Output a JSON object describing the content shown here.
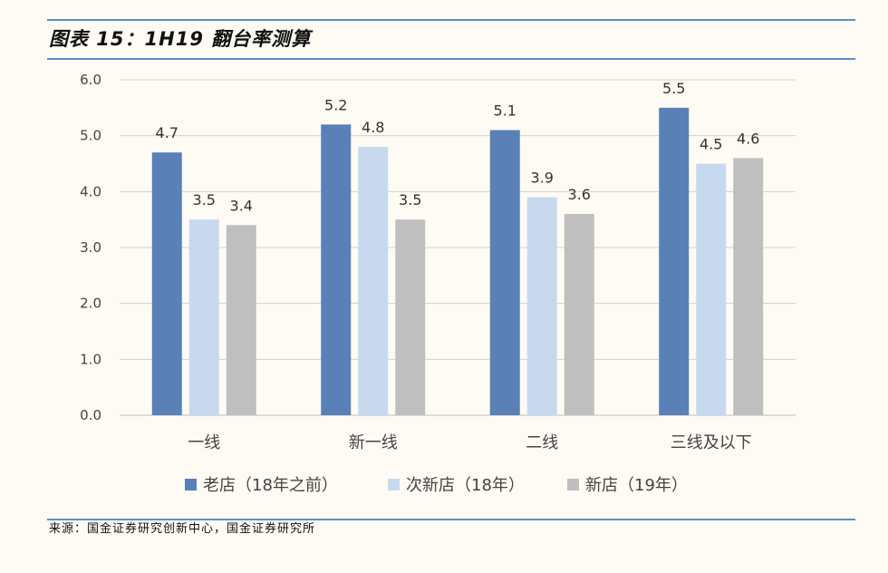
{
  "page": {
    "title": "图表 15：1H19 翻台率测算",
    "source": "来源：国金证券研究创新中心，国金证券研究所"
  },
  "colors": {
    "rule": "#5b8fc6",
    "grid": "#d0d0d0",
    "series": [
      "#5a80b8",
      "#c8d9ef",
      "#bfbfbf"
    ]
  },
  "chart_data": {
    "type": "bar",
    "title": "",
    "xlabel": "",
    "ylabel": "",
    "ylim": [
      0,
      6
    ],
    "yticks": [
      "0.0",
      "1.0",
      "2.0",
      "3.0",
      "4.0",
      "5.0",
      "6.0"
    ],
    "grid": true,
    "legend_position": "bottom",
    "categories": [
      "一线",
      "新一线",
      "二线",
      "三线及以下"
    ],
    "series": [
      {
        "name": "老店（18年之前）",
        "values": [
          4.7,
          5.2,
          5.1,
          5.5
        ]
      },
      {
        "name": "次新店（18年）",
        "values": [
          3.5,
          4.8,
          3.9,
          4.5
        ]
      },
      {
        "name": "新店（19年）",
        "values": [
          3.4,
          3.5,
          3.6,
          4.6
        ]
      }
    ]
  }
}
